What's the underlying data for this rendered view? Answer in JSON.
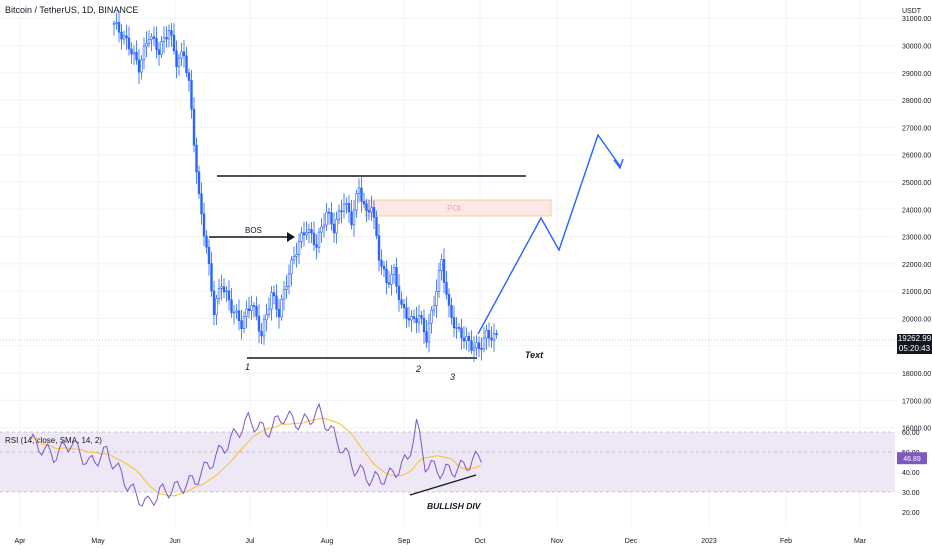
{
  "header": {
    "symbol": "Bitcoin / TetherUS, 1D, BINANCE"
  },
  "price_axis": {
    "unit": "USDT",
    "ticks": [
      "31000.00",
      "30000.00",
      "29000.00",
      "28000.00",
      "27000.00",
      "26000.00",
      "25000.00",
      "24000.00",
      "23000.00",
      "22000.00",
      "21000.00",
      "20000.00",
      "19000.00",
      "18000.00",
      "17000.00",
      "16000.00"
    ],
    "last_price": "19262.99",
    "countdown": "05:20:43"
  },
  "rsi": {
    "label": "RSI (14, close, SMA, 14, 2)",
    "ticks": [
      "60.00",
      "50.00",
      "40.00",
      "30.00",
      "20.00"
    ],
    "value": "46.89"
  },
  "time_axis": {
    "labels": [
      "Apr",
      "May",
      "Jun",
      "Jul",
      "Aug",
      "Sep",
      "Oct",
      "Nov",
      "Dec",
      "2023",
      "Feb",
      "Mar"
    ]
  },
  "annotations": {
    "bos": "BOS",
    "poi": "POI",
    "swing_1": "1",
    "swing_2": "2",
    "swing_3": "3",
    "text_note": "Text",
    "bullish_div": "BULLISH DIV"
  },
  "colors": {
    "candle": "#2962ff",
    "projection": "#2962ff",
    "rsi_line": "#7e57c2",
    "rsi_ma": "#fbc02d",
    "poi_fill": "#fde7e7",
    "rsi_band": "#ede7f6"
  },
  "chart_data": {
    "type": "candlestick",
    "title": "Bitcoin / TetherUS, 1D, BINANCE",
    "x_range": [
      "Apr",
      "Mar"
    ],
    "y_range": [
      16000,
      31500
    ],
    "y_unit": "USDT",
    "last_price": 19262.99,
    "key_levels": [
      {
        "label": "range-high",
        "value": 25250
      },
      {
        "label": "range-low",
        "value": 18700
      },
      {
        "label": "BOS",
        "value": 23000
      }
    ],
    "poi_zone": {
      "label": "POI",
      "low": 23700,
      "high": 24300
    },
    "projection": [
      {
        "date": "Oct",
        "value": 19200
      },
      {
        "date": "late Oct",
        "value": 23700
      },
      {
        "date": "early Nov",
        "value": 22500
      },
      {
        "date": "mid Nov",
        "value": 26700
      },
      {
        "date": "late Nov",
        "value": 25500
      }
    ],
    "rsi": {
      "label": "RSI (14, close, SMA, 14, 2)",
      "length": 14,
      "source": "close",
      "ma_type": "SMA",
      "ma_length": 14,
      "levels": [
        30,
        50,
        70
      ],
      "y_ticks": [
        20,
        30,
        40,
        50,
        60
      ],
      "annotation": "BULLISH DIV"
    }
  }
}
